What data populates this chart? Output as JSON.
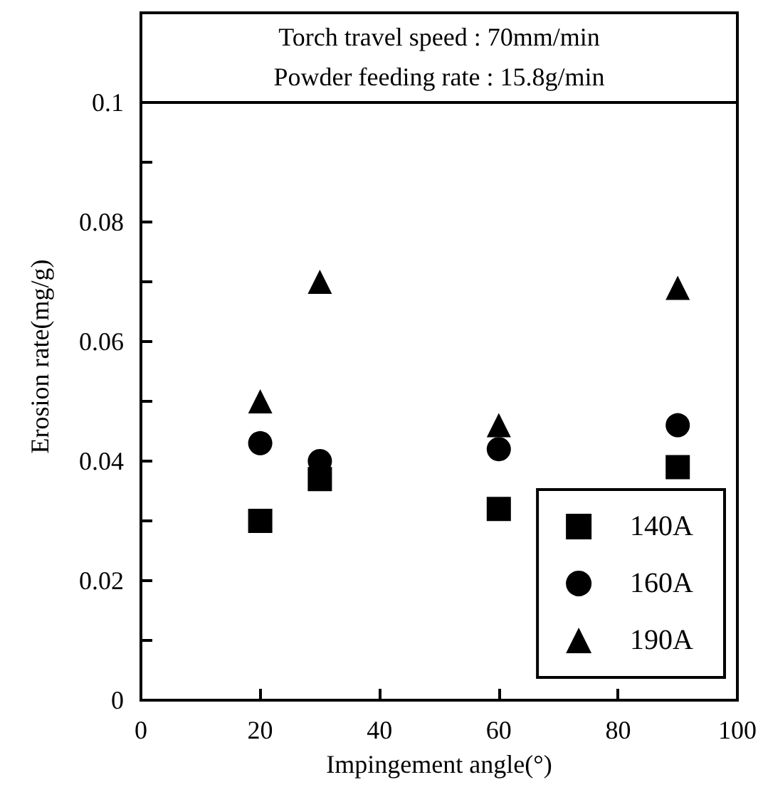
{
  "chart_data": {
    "type": "scatter",
    "xlabel": "Impingement angle(°)",
    "ylabel": "Erosion rate(mg/g)",
    "annotations": [
      "Torch travel speed : 70mm/min",
      "Powder feeding rate : 15.8g/min"
    ],
    "x": [
      20,
      30,
      60,
      90
    ],
    "series": [
      {
        "name": "140A",
        "color": "#000000",
        "marker": "square",
        "values": [
          0.03,
          0.037,
          0.032,
          0.039
        ]
      },
      {
        "name": "160A",
        "color": "#000000",
        "marker": "circle",
        "values": [
          0.043,
          0.04,
          0.042,
          0.046
        ]
      },
      {
        "name": "190A",
        "color": "#000000",
        "marker": "triangle",
        "values": [
          0.05,
          0.07,
          0.046,
          0.069
        ]
      }
    ],
    "xlim": [
      0,
      100
    ],
    "xticks": [
      0,
      20,
      40,
      60,
      80,
      100
    ],
    "ylim": [
      0,
      0.115
    ],
    "yticks": [
      0,
      {
        "value": 0.01,
        "label": null
      },
      0.02,
      {
        "value": 0.03,
        "label": null
      },
      0.04,
      {
        "value": 0.05,
        "label": null
      },
      0.06,
      {
        "value": 0.07,
        "label": null
      },
      0.08,
      {
        "value": 0.09,
        "label": null
      },
      0.1
    ],
    "legend": "bottom right"
  }
}
